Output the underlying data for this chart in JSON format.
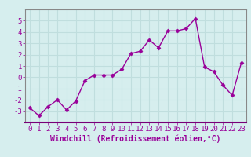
{
  "x": [
    0,
    1,
    2,
    3,
    4,
    5,
    6,
    7,
    8,
    9,
    10,
    11,
    12,
    13,
    14,
    15,
    16,
    17,
    18,
    19,
    20,
    21,
    22,
    23
  ],
  "y": [
    -2.7,
    -3.4,
    -2.6,
    -2.0,
    -2.9,
    -2.1,
    -0.3,
    0.2,
    0.2,
    0.2,
    0.7,
    2.1,
    2.3,
    3.3,
    2.6,
    4.1,
    4.1,
    4.3,
    5.2,
    0.9,
    0.5,
    -0.7,
    -1.6,
    1.3
  ],
  "line_color": "#990099",
  "marker": "D",
  "markersize": 2.5,
  "linewidth": 1.0,
  "xlabel": "Windchill (Refroidissement éolien,°C)",
  "xlabel_fontsize": 7,
  "xlim": [
    -0.5,
    23.5
  ],
  "ylim": [
    -4.0,
    6.0
  ],
  "yticks": [
    -3,
    -2,
    -1,
    0,
    1,
    2,
    3,
    4,
    5
  ],
  "xticks": [
    0,
    1,
    2,
    3,
    4,
    5,
    6,
    7,
    8,
    9,
    10,
    11,
    12,
    13,
    14,
    15,
    16,
    17,
    18,
    19,
    20,
    21,
    22,
    23
  ],
  "background_color": "#d6eeee",
  "grid_color": "#c0dede",
  "tick_fontsize": 6.5,
  "tick_color": "#990099",
  "label_color": "#990099",
  "spine_color": "#888888",
  "axis_bg": "#d6eeee"
}
